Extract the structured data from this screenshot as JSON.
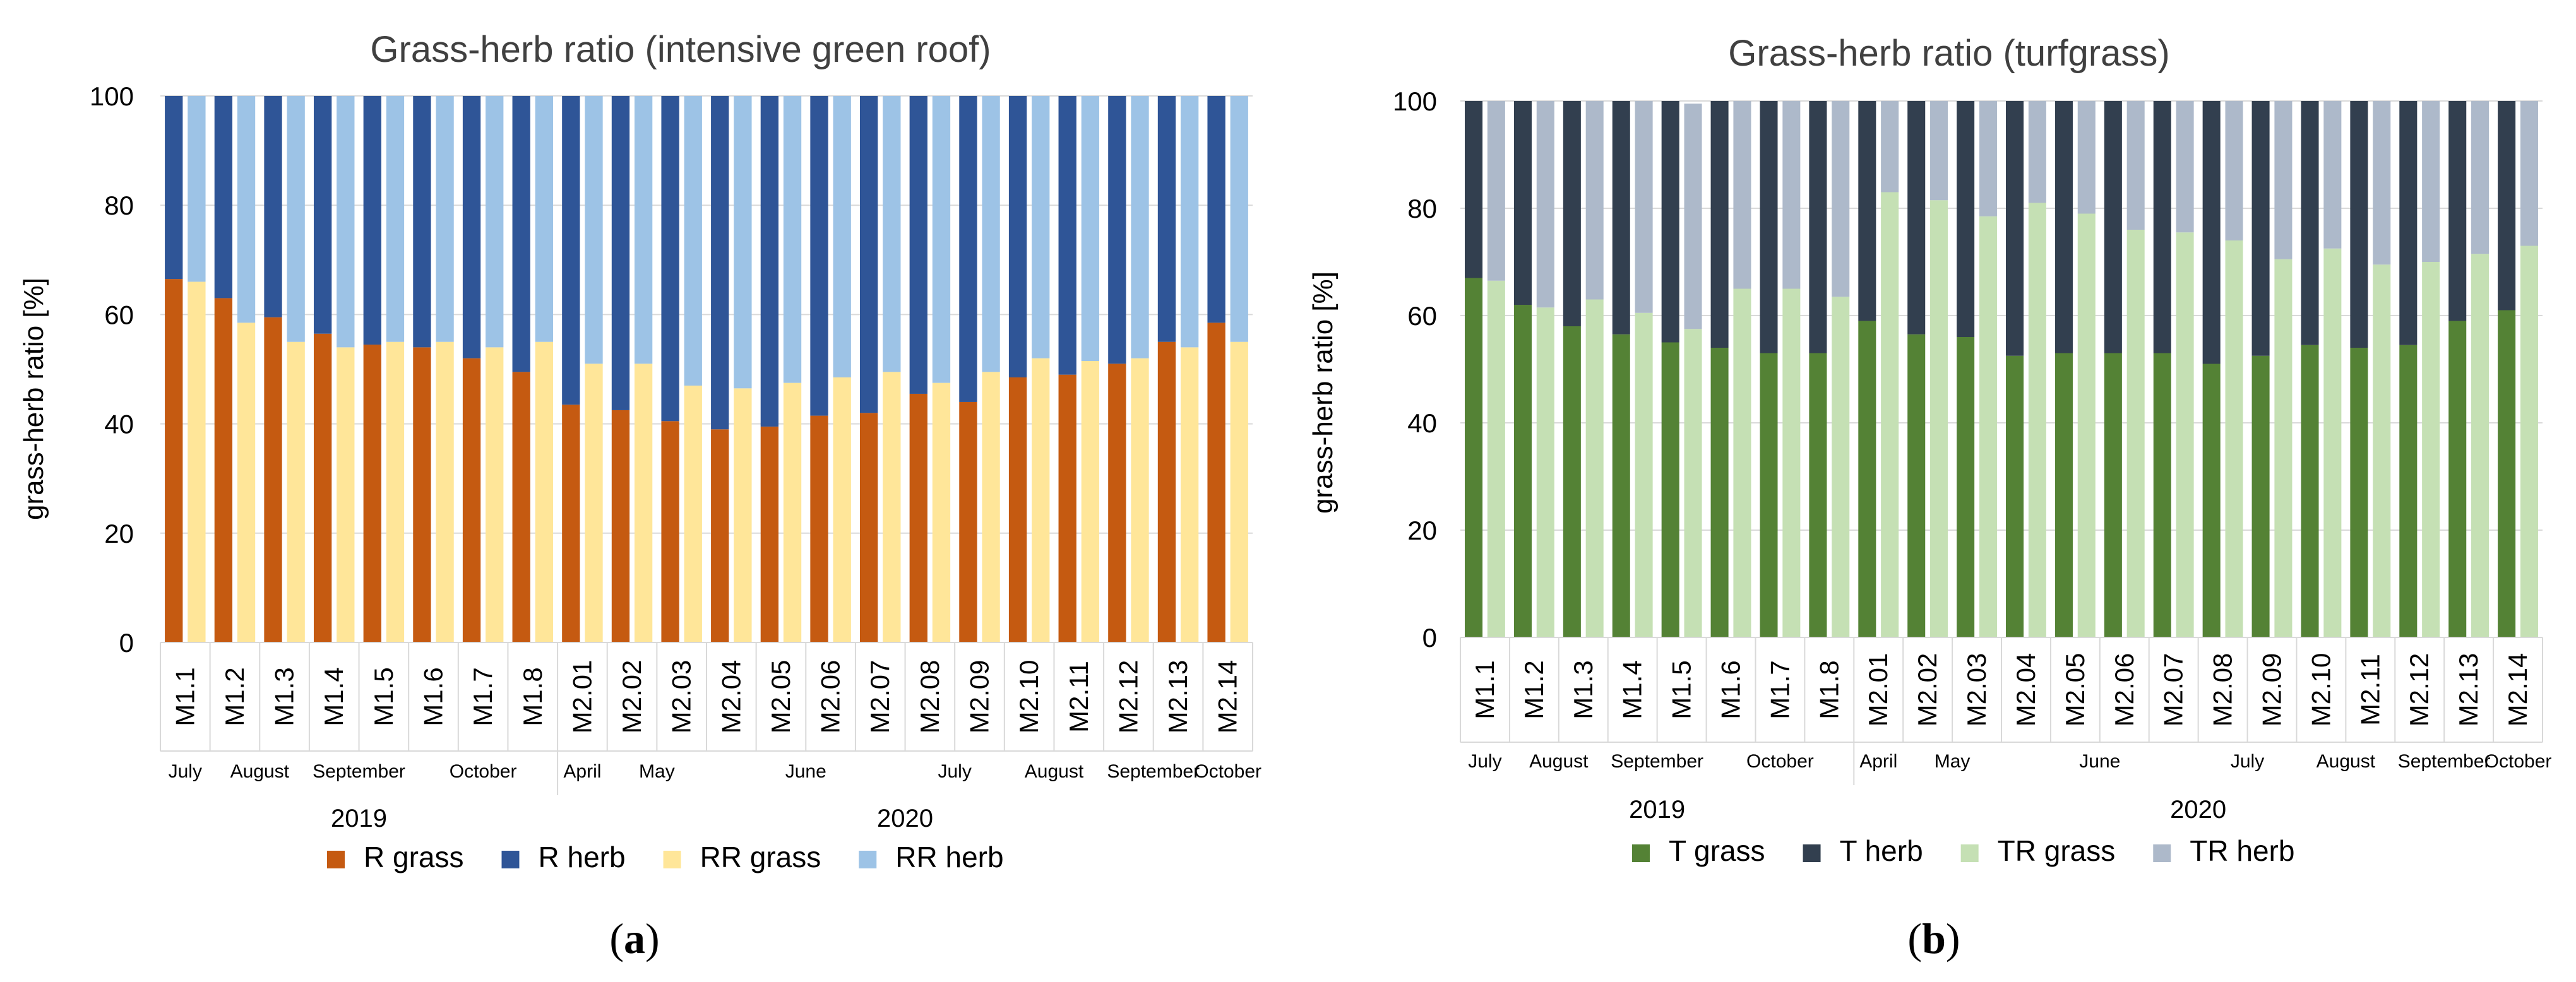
{
  "panels": [
    {
      "caption": "a",
      "chart_data": {
        "type": "bar",
        "stacked": "pairwise (100% stacked, two bars per month)",
        "title": "Grass-herb ratio (intensive green roof)",
        "xlabel": "",
        "ylabel": "grass-herb ratio [%]",
        "ylim": [
          0,
          100
        ],
        "yticks": [
          0,
          20,
          40,
          60,
          80,
          100
        ],
        "grid": true,
        "legend": "bottom",
        "categories": [
          "M1.1",
          "M1.2",
          "M1.3",
          "M1.4",
          "M1.5",
          "M1.6",
          "M1.7",
          "M1.8",
          "M2.01",
          "M2.02",
          "M2.03",
          "M2.04",
          "M2.05",
          "M2.06",
          "M2.07",
          "M2.08",
          "M2.09",
          "M2.10",
          "M2.11",
          "M2.12",
          "M2.13",
          "M2.14"
        ],
        "month_groups": [
          {
            "label": "July",
            "count": 1
          },
          {
            "label": "August",
            "count": 2
          },
          {
            "label": "September",
            "count": 2
          },
          {
            "label": "October",
            "count": 3
          },
          {
            "label": "April",
            "count": 1
          },
          {
            "label": "May",
            "count": 2
          },
          {
            "label": "June",
            "count": 4
          },
          {
            "label": "July",
            "count": 2
          },
          {
            "label": "August",
            "count": 2
          },
          {
            "label": "September",
            "count": 2
          },
          {
            "label": "October",
            "count": 1
          }
        ],
        "year_groups": [
          {
            "label": "2019",
            "count": 8
          },
          {
            "label": "2020",
            "count": 14
          }
        ],
        "series": [
          {
            "name": "R grass",
            "color": "#c55a11",
            "bar": 0,
            "values": [
              66.5,
              63,
              59.5,
              56.5,
              54.5,
              54,
              52,
              49.5,
              43.5,
              42.5,
              40.5,
              39,
              39.5,
              41.5,
              42,
              45.5,
              44,
              48.5,
              49,
              51,
              55,
              58.5
            ]
          },
          {
            "name": "R herb",
            "color": "#2f5597",
            "bar": 0,
            "values": [
              33.5,
              37,
              40.5,
              43.5,
              45.5,
              46,
              48,
              50.5,
              56.5,
              57.5,
              59.5,
              61,
              60.5,
              58.5,
              58,
              54.5,
              56,
              51.5,
              51,
              49,
              45,
              41.5
            ]
          },
          {
            "name": "RR grass",
            "color": "#ffe699",
            "bar": 1,
            "values": [
              66,
              58.5,
              55,
              54,
              55,
              55,
              54,
              55,
              51,
              51,
              47,
              46.5,
              47.5,
              48.5,
              49.5,
              47.5,
              49.5,
              52,
              51.5,
              52,
              54,
              55
            ]
          },
          {
            "name": "RR herb",
            "color": "#9dc3e6",
            "bar": 1,
            "values": [
              34,
              41.5,
              45,
              46,
              45,
              45,
              46,
              45,
              49,
              49,
              53,
              53.5,
              52.5,
              51.5,
              50.5,
              52.5,
              50.5,
              48,
              48.5,
              48,
              46,
              45
            ]
          }
        ]
      }
    },
    {
      "caption": "b",
      "chart_data": {
        "type": "bar",
        "stacked": "pairwise (100% stacked, two bars per month)",
        "title": "Grass-herb ratio (turfgrass)",
        "xlabel": "",
        "ylabel": "grass-herb ratio [%]",
        "ylim": [
          0,
          100
        ],
        "yticks": [
          0,
          20,
          40,
          60,
          80,
          100
        ],
        "grid": true,
        "legend": "bottom",
        "categories": [
          "M1.1",
          "M1.2",
          "M1.3",
          "M1.4",
          "M1.5",
          "M1.6",
          "M1.7",
          "M1.8",
          "M2.01",
          "M2.02",
          "M2.03",
          "M2.04",
          "M2.05",
          "M2.06",
          "M2.07",
          "M2.08",
          "M2.09",
          "M2.10",
          "M2.11",
          "M2.12",
          "M2.13",
          "M2.14"
        ],
        "month_groups": [
          {
            "label": "July",
            "count": 1
          },
          {
            "label": "August",
            "count": 2
          },
          {
            "label": "September",
            "count": 2
          },
          {
            "label": "October",
            "count": 3
          },
          {
            "label": "April",
            "count": 1
          },
          {
            "label": "May",
            "count": 2
          },
          {
            "label": "June",
            "count": 4
          },
          {
            "label": "July",
            "count": 2
          },
          {
            "label": "August",
            "count": 2
          },
          {
            "label": "September",
            "count": 2
          },
          {
            "label": "October",
            "count": 1
          }
        ],
        "year_groups": [
          {
            "label": "2019",
            "count": 8
          },
          {
            "label": "2020",
            "count": 14
          }
        ],
        "series": [
          {
            "name": "T grass",
            "color": "#548235",
            "bar": 0,
            "values": [
              67,
              62,
              58,
              56.5,
              55,
              54,
              53,
              53,
              59,
              56.5,
              56,
              52.5,
              53,
              53,
              53,
              51,
              52.5,
              54.5,
              54,
              54.5,
              59,
              61
            ]
          },
          {
            "name": "T herb",
            "color": "#323f4f",
            "bar": 0,
            "values": [
              33,
              38,
              42,
              43.5,
              45,
              46,
              47,
              47,
              41,
              43.5,
              44,
              47.5,
              47,
              47,
              47,
              49,
              47.5,
              45.5,
              46,
              45.5,
              41,
              39
            ]
          },
          {
            "name": "TR grass",
            "color": "#c5e0b4",
            "bar": 1,
            "values": [
              66.5,
              61.5,
              63,
              60.5,
              57.5,
              65,
              65,
              63.5,
              83,
              81.5,
              78.5,
              81,
              79,
              76,
              75.5,
              74,
              70.5,
              72.5,
              69.5,
              70,
              71.5,
              73
            ]
          },
          {
            "name": "TR herb",
            "color": "#adb9ca",
            "bar": 1,
            "values": [
              33.5,
              38.5,
              37,
              39.5,
              42,
              35,
              35,
              36.5,
              17,
              18.5,
              21.5,
              19,
              21,
              24,
              24.5,
              26,
              29.5,
              27.5,
              30.5,
              30,
              28.5,
              27
            ]
          }
        ]
      }
    }
  ]
}
